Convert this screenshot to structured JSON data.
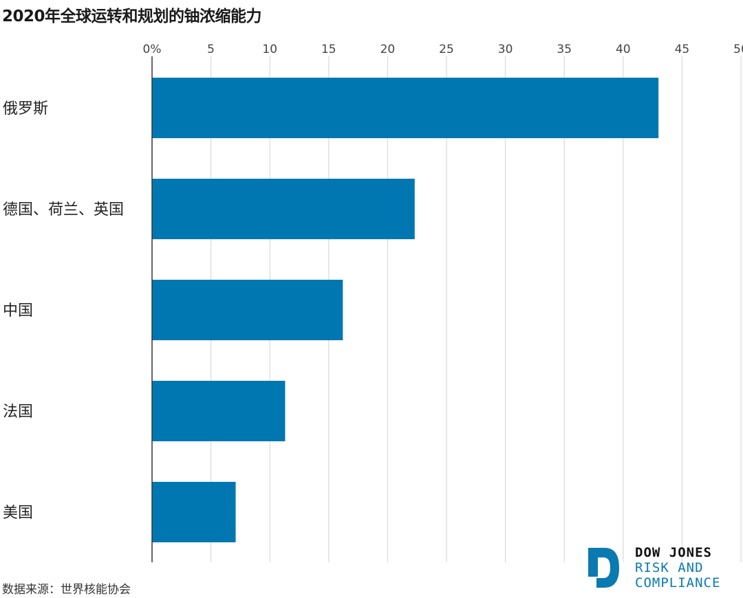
{
  "title": "2020年全球运转和规划的铀浓缩能力",
  "source": "数据来源：世界核能协会",
  "logo": {
    "line1": "DOW JONES",
    "line2": "RISK AND",
    "line3": "COMPLIANCE"
  },
  "colors": {
    "bar": "#0077b0",
    "grid": "#d9d9d9",
    "axis": "#333333",
    "logo_accent": "#0a7ab0"
  },
  "chart_data": {
    "type": "bar",
    "orientation": "horizontal",
    "title": "2020年全球运转和规划的铀浓缩能力",
    "categories": [
      "俄罗斯",
      "德国、荷兰、英国",
      "中国",
      "法国",
      "美国"
    ],
    "values": [
      43,
      22.3,
      16.2,
      11.3,
      7.1
    ],
    "x_ticks": [
      "0%",
      "5",
      "10",
      "15",
      "20",
      "25",
      "30",
      "35",
      "40",
      "45",
      "50"
    ],
    "xlim": [
      0,
      50
    ],
    "xlabel": "",
    "ylabel": "",
    "grid": true,
    "tick_position": "top"
  }
}
